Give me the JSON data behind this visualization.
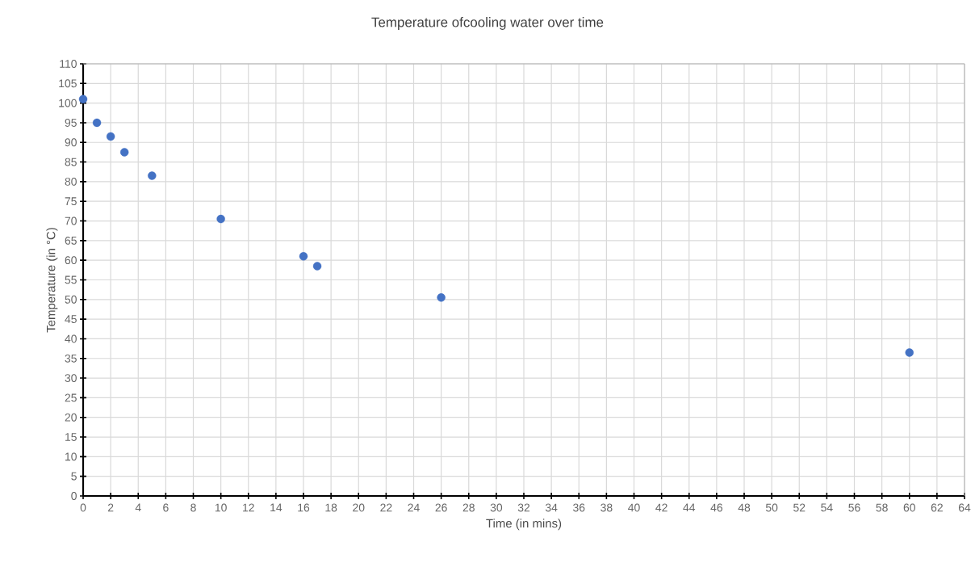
{
  "chart_data": {
    "type": "scatter",
    "title": "Temperature ofcooling water over time",
    "xlabel": "Time (in mins)",
    "ylabel": "Temperature (in °C)",
    "x": [
      0,
      1,
      2,
      3,
      5,
      10,
      16,
      17,
      26,
      60
    ],
    "series": [
      {
        "color": "#4472c4",
        "values": [
          101,
          95,
          91.5,
          87.5,
          81.5,
          70.5,
          61,
          58.5,
          50.5,
          36.5
        ]
      }
    ],
    "xlim": [
      0,
      64
    ],
    "ylim": [
      0,
      110
    ],
    "xticks": [
      0,
      2,
      4,
      6,
      8,
      10,
      12,
      14,
      16,
      18,
      20,
      22,
      24,
      26,
      28,
      30,
      32,
      34,
      36,
      38,
      40,
      42,
      44,
      46,
      48,
      50,
      52,
      54,
      56,
      58,
      60,
      62,
      64
    ],
    "yticks": [
      0,
      5,
      10,
      15,
      20,
      25,
      30,
      35,
      40,
      45,
      50,
      55,
      60,
      65,
      70,
      75,
      80,
      85,
      90,
      95,
      100,
      105,
      110
    ],
    "grid": true,
    "marker": "circle"
  }
}
